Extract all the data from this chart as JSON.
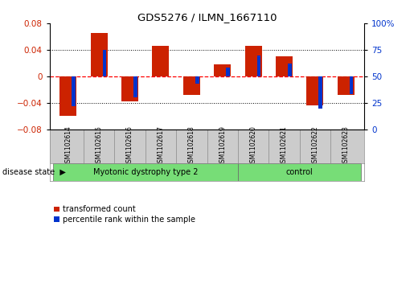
{
  "title": "GDS5276 / ILMN_1667110",
  "samples": [
    "GSM1102614",
    "GSM1102615",
    "GSM1102616",
    "GSM1102617",
    "GSM1102618",
    "GSM1102619",
    "GSM1102620",
    "GSM1102621",
    "GSM1102622",
    "GSM1102623"
  ],
  "red_values": [
    -0.06,
    0.065,
    -0.038,
    0.046,
    -0.028,
    0.018,
    0.046,
    0.03,
    -0.044,
    -0.028
  ],
  "blue_values_pct": [
    22,
    75,
    30,
    50,
    43,
    58,
    70,
    62,
    20,
    33
  ],
  "group_defs": [
    {
      "label": "Myotonic dystrophy type 2",
      "start": 0,
      "end": 6,
      "color": "#77dd77"
    },
    {
      "label": "control",
      "start": 6,
      "end": 10,
      "color": "#77dd77"
    }
  ],
  "ylim": [
    -0.08,
    0.08
  ],
  "y2lim": [
    0,
    100
  ],
  "yticks": [
    -0.08,
    -0.04,
    0,
    0.04,
    0.08
  ],
  "y2ticks": [
    0,
    25,
    50,
    75,
    100
  ],
  "red_color": "#cc2200",
  "blue_color": "#0033cc",
  "bg_plot": "#ffffff",
  "bg_labels": "#cccccc",
  "legend_red": "transformed count",
  "legend_blue": "percentile rank within the sample",
  "disease_state_label": "disease state"
}
